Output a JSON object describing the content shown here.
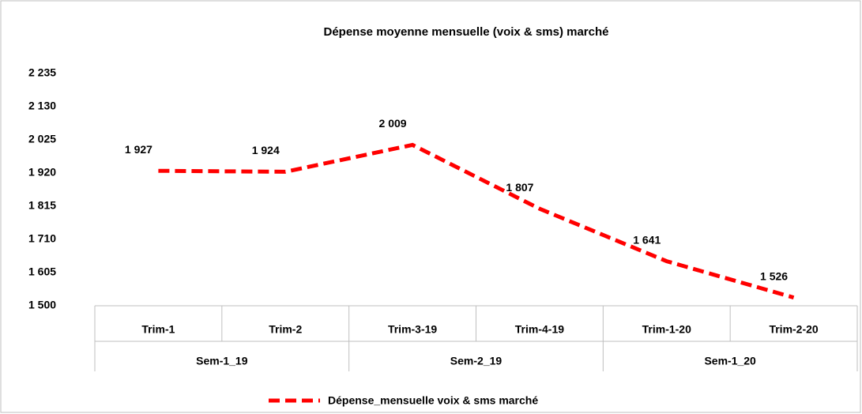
{
  "chart_data": {
    "type": "line",
    "title": "Dépense moyenne mensuelle (voix & sms) marché",
    "categories": [
      "Trim-1",
      "Trim-2",
      "Trim-3-19",
      "Trim-4-19",
      "Trim-1-20",
      "Trim-2-20"
    ],
    "groups": [
      "Sem-1_19",
      "Sem-2_19",
      "Sem-1_20"
    ],
    "series": [
      {
        "name": "Dépense_mensuelle voix & sms marché",
        "color": "#ff0000",
        "values": [
          1927,
          1924,
          2009,
          1807,
          1641,
          1526
        ],
        "value_labels": [
          "1 927",
          "1 924",
          "2 009",
          "1 807",
          "1 641",
          "1 526"
        ]
      }
    ],
    "ylim": [
      1500,
      2235
    ],
    "yticks": [
      {
        "value": 1500,
        "label": "1 500"
      },
      {
        "value": 1605,
        "label": "1 605"
      },
      {
        "value": 1710,
        "label": "1 710"
      },
      {
        "value": 1815,
        "label": "1 815"
      },
      {
        "value": 1920,
        "label": "1 920"
      },
      {
        "value": 2025,
        "label": "2 025"
      },
      {
        "value": 2130,
        "label": "2 130"
      },
      {
        "value": 2235,
        "label": "2 235"
      }
    ],
    "grid": false,
    "legend": "bottom"
  }
}
